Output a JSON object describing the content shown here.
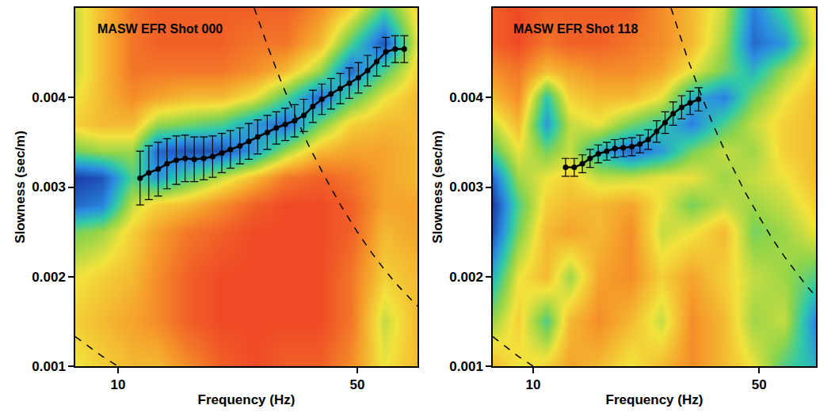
{
  "chart_data": [
    {
      "type": "heatmap",
      "title": "MASW EFR Shot 000",
      "x_label": "Frequency (Hz)",
      "y_label": "Slowness (sec/m)",
      "log": "x",
      "xlim": [
        7.5,
        75
      ],
      "xticks": [
        10,
        50
      ],
      "ylim": [
        0.001,
        0.005
      ],
      "yticks": [
        0.001,
        0.002,
        0.003,
        0.004
      ],
      "heatmap": {
        "x": [
          7.5,
          9,
          11,
          13,
          16,
          20,
          25,
          31,
          39,
          48,
          60,
          75
        ],
        "y": [
          0.001,
          0.0015,
          0.002,
          0.0025,
          0.0028,
          0.0031,
          0.0034,
          0.0037,
          0.004,
          0.0043,
          0.0046,
          0.005
        ],
        "cells": [
          [
            0.4,
            0.35,
            0.3,
            0.3,
            0.2,
            0.1,
            0.05,
            0.1,
            0.1,
            0.2,
            0.4,
            0.3
          ],
          [
            0.35,
            0.3,
            0.25,
            0.2,
            0.1,
            0.05,
            0.05,
            0.05,
            0.05,
            0.15,
            0.45,
            0.3
          ],
          [
            0.4,
            0.35,
            0.3,
            0.2,
            0.1,
            0.05,
            0.05,
            0.05,
            0.05,
            0.15,
            0.35,
            0.3
          ],
          [
            0.55,
            0.5,
            0.35,
            0.25,
            0.15,
            0.1,
            0.05,
            0.05,
            0.05,
            0.1,
            0.3,
            0.25
          ],
          [
            0.85,
            0.8,
            0.45,
            0.35,
            0.3,
            0.2,
            0.1,
            0.05,
            0.05,
            0.1,
            0.25,
            0.25
          ],
          [
            0.95,
            0.9,
            0.6,
            0.75,
            0.6,
            0.45,
            0.3,
            0.15,
            0.1,
            0.15,
            0.25,
            0.3
          ],
          [
            0.55,
            0.5,
            0.5,
            0.85,
            0.9,
            0.9,
            0.75,
            0.5,
            0.3,
            0.25,
            0.25,
            0.3
          ],
          [
            0.35,
            0.3,
            0.3,
            0.5,
            0.55,
            0.6,
            0.75,
            0.85,
            0.55,
            0.35,
            0.3,
            0.3
          ],
          [
            0.4,
            0.3,
            0.2,
            0.25,
            0.3,
            0.3,
            0.4,
            0.6,
            0.85,
            0.6,
            0.4,
            0.3
          ],
          [
            0.45,
            0.3,
            0.15,
            0.15,
            0.15,
            0.15,
            0.2,
            0.3,
            0.5,
            0.85,
            0.6,
            0.35
          ],
          [
            0.45,
            0.3,
            0.15,
            0.1,
            0.1,
            0.1,
            0.15,
            0.15,
            0.3,
            0.6,
            0.9,
            0.4
          ],
          [
            0.45,
            0.3,
            0.15,
            0.1,
            0.1,
            0.1,
            0.1,
            0.1,
            0.2,
            0.35,
            0.6,
            0.35
          ]
        ]
      },
      "series": [
        {
          "type": "line",
          "color": "#000000",
          "marker": "circle",
          "x": [
            11.6,
            12.3,
            13.1,
            13.9,
            14.8,
            15.7,
            16.7,
            17.8,
            18.9,
            20.1,
            21.3,
            22.7,
            24.1,
            25.6,
            27.3,
            29.0,
            30.8,
            32.8,
            34.9,
            37.1,
            39.4,
            41.9,
            44.6,
            47.4,
            50.4,
            53.6,
            57.0,
            60.6,
            64.5,
            68.6
          ],
          "values": [
            0.0031,
            0.00316,
            0.0032,
            0.00326,
            0.0033,
            0.00332,
            0.00331,
            0.00332,
            0.00334,
            0.00338,
            0.00342,
            0.00346,
            0.00351,
            0.00356,
            0.00361,
            0.00366,
            0.0037,
            0.00374,
            0.0038,
            0.0039,
            0.00398,
            0.00404,
            0.0041,
            0.00416,
            0.00422,
            0.0043,
            0.0044,
            0.00451,
            0.00454,
            0.00454
          ],
          "errors": [
            0.0003,
            0.0003,
            0.0003,
            0.00028,
            0.00027,
            0.00026,
            0.00025,
            0.00024,
            0.00023,
            0.00022,
            0.00021,
            0.0002,
            0.0002,
            0.00019,
            0.00019,
            0.00018,
            0.00018,
            0.00018,
            0.00018,
            0.00018,
            0.00017,
            0.00017,
            0.00017,
            0.00017,
            0.00017,
            0.00017,
            0.00016,
            0.00016,
            0.00015,
            0.00015
          ]
        },
        {
          "type": "line",
          "color": "#000000",
          "line_style": "dashed",
          "x": [
            25,
            27.5,
            30,
            33,
            36,
            40,
            45,
            50,
            55,
            60,
            65,
            70,
            75
          ],
          "values": [
            0.005,
            0.00455,
            0.00417,
            0.00379,
            0.00347,
            0.00313,
            0.00278,
            0.0025,
            0.00227,
            0.00208,
            0.00192,
            0.00179,
            0.00167
          ]
        },
        {
          "type": "line",
          "color": "#000000",
          "line_style": "dashed",
          "x": [
            7.5,
            8,
            9,
            10
          ],
          "values": [
            0.00133,
            0.00125,
            0.00111,
            0.001
          ]
        }
      ]
    },
    {
      "type": "heatmap",
      "title": "MASW EFR Shot 118",
      "x_label": "Frequency (Hz)",
      "y_label": "Slowness (sec/m)",
      "log": "x",
      "xlim": [
        7.5,
        75
      ],
      "xticks": [
        10,
        50
      ],
      "ylim": [
        0.001,
        0.005
      ],
      "yticks": [
        0.001,
        0.002,
        0.003,
        0.004
      ],
      "heatmap": {
        "x": [
          7.5,
          9,
          11,
          13,
          16,
          20,
          25,
          31,
          39,
          48,
          60,
          75
        ],
        "y": [
          0.001,
          0.0015,
          0.002,
          0.0025,
          0.0028,
          0.0031,
          0.0034,
          0.0037,
          0.004,
          0.0043,
          0.0046,
          0.005
        ],
        "cells": [
          [
            0.3,
            0.4,
            0.35,
            0.25,
            0.3,
            0.4,
            0.3,
            0.2,
            0.3,
            0.4,
            0.6,
            0.7
          ],
          [
            0.5,
            0.35,
            0.6,
            0.3,
            0.2,
            0.3,
            0.45,
            0.2,
            0.3,
            0.5,
            0.45,
            0.8
          ],
          [
            0.7,
            0.4,
            0.3,
            0.5,
            0.25,
            0.2,
            0.35,
            0.25,
            0.35,
            0.45,
            0.5,
            0.6
          ],
          [
            0.9,
            0.55,
            0.3,
            0.25,
            0.3,
            0.2,
            0.45,
            0.4,
            0.3,
            0.55,
            0.5,
            0.4
          ],
          [
            0.95,
            0.6,
            0.35,
            0.3,
            0.3,
            0.25,
            0.4,
            0.55,
            0.45,
            0.5,
            0.45,
            0.35
          ],
          [
            0.85,
            0.5,
            0.4,
            0.35,
            0.45,
            0.45,
            0.4,
            0.4,
            0.5,
            0.45,
            0.4,
            0.3
          ],
          [
            0.6,
            0.4,
            0.55,
            0.45,
            0.7,
            0.85,
            0.75,
            0.55,
            0.45,
            0.5,
            0.35,
            0.3
          ],
          [
            0.45,
            0.3,
            0.75,
            0.45,
            0.4,
            0.55,
            0.65,
            0.8,
            0.6,
            0.45,
            0.35,
            0.3
          ],
          [
            0.3,
            0.2,
            0.65,
            0.35,
            0.3,
            0.3,
            0.4,
            0.7,
            0.8,
            0.55,
            0.4,
            0.3
          ],
          [
            0.2,
            0.15,
            0.3,
            0.25,
            0.2,
            0.2,
            0.25,
            0.4,
            0.55,
            0.7,
            0.5,
            0.35
          ],
          [
            0.1,
            0.05,
            0.15,
            0.1,
            0.1,
            0.15,
            0.2,
            0.3,
            0.5,
            0.85,
            0.75,
            0.4
          ],
          [
            0.1,
            0.05,
            0.1,
            0.1,
            0.1,
            0.1,
            0.2,
            0.3,
            0.45,
            0.8,
            0.6,
            0.35
          ]
        ]
      },
      "series": [
        {
          "type": "line",
          "color": "#000000",
          "marker": "circle",
          "x": [
            12.6,
            13.4,
            14.2,
            15.0,
            15.9,
            16.9,
            17.9,
            19.0,
            20.2,
            21.4,
            22.7,
            24.1,
            25.6,
            27.1,
            28.8,
            30.6,
            32.5
          ],
          "values": [
            0.00322,
            0.00322,
            0.00326,
            0.00332,
            0.00337,
            0.0034,
            0.00343,
            0.00344,
            0.00345,
            0.00348,
            0.00353,
            0.00362,
            0.00372,
            0.00382,
            0.00389,
            0.00394,
            0.00398
          ],
          "errors": [
            0.0001,
            0.0001,
            0.0001,
            0.0001,
            0.0001,
            0.0001,
            0.0001,
            0.0001,
            0.0001,
            0.0001,
            0.00011,
            0.00012,
            0.00012,
            0.00013,
            0.00013,
            0.00013,
            0.00013
          ]
        },
        {
          "type": "line",
          "color": "#000000",
          "line_style": "dashed",
          "x": [
            26.7,
            30,
            33,
            36,
            40,
            45,
            50,
            55,
            60,
            65,
            70,
            75
          ],
          "values": [
            0.005,
            0.00444,
            0.00404,
            0.0037,
            0.00333,
            0.00296,
            0.00267,
            0.00242,
            0.00222,
            0.00205,
            0.0019,
            0.00178
          ]
        },
        {
          "type": "line",
          "color": "#000000",
          "line_style": "dashed",
          "x": [
            7.5,
            8,
            9,
            10
          ],
          "values": [
            0.00133,
            0.00125,
            0.00111,
            0.001
          ]
        }
      ]
    }
  ]
}
